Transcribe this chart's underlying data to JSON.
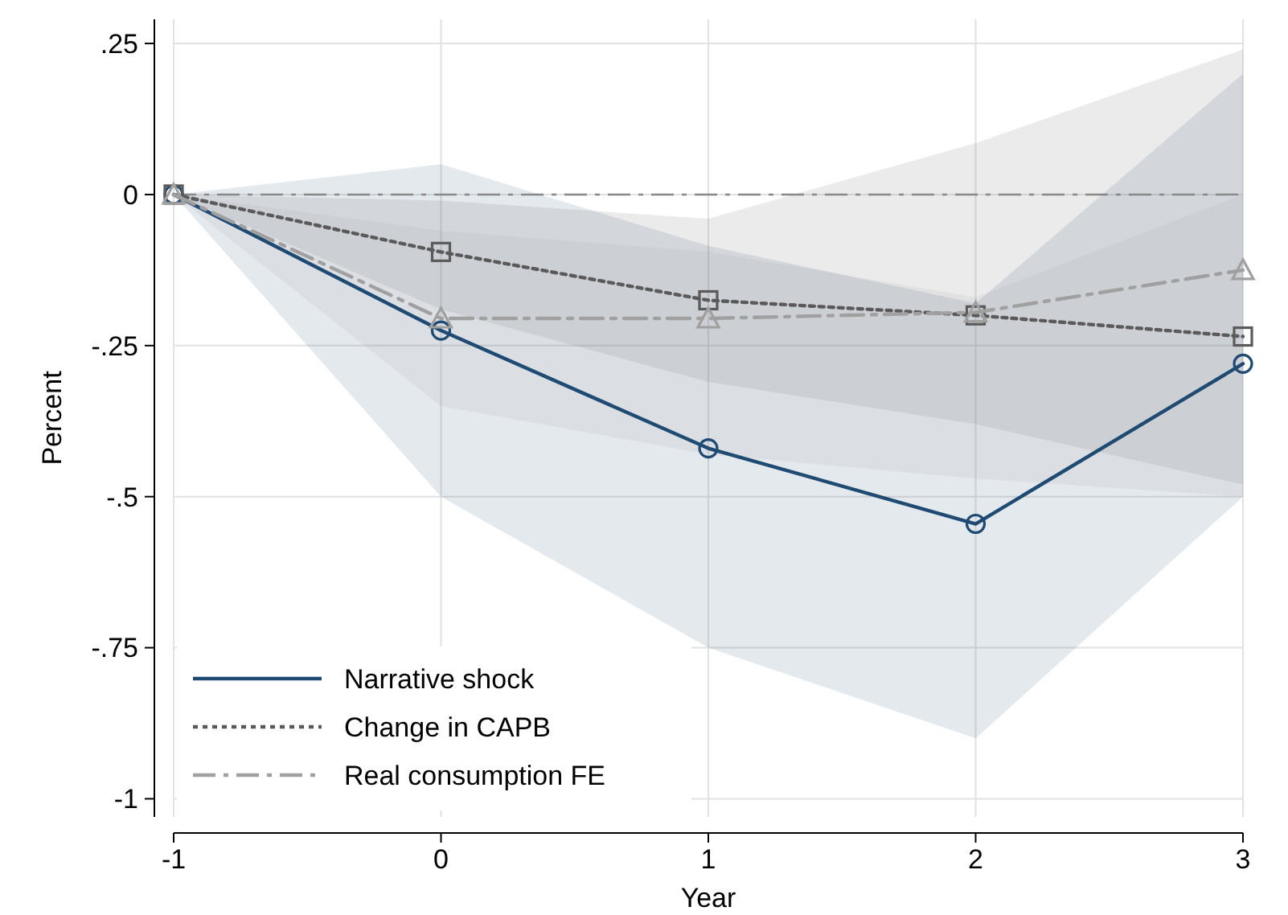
{
  "chart_data": {
    "type": "line",
    "xlabel": "Year",
    "ylabel": "Percent",
    "x": [
      -1,
      0,
      1,
      2,
      3
    ],
    "xlim": [
      -1,
      3
    ],
    "xticks": [
      -1,
      0,
      1,
      2,
      3
    ],
    "ylim": [
      -1.03,
      0.29
    ],
    "yticks": [
      {
        "value": 0.25,
        "label": ".25"
      },
      0,
      {
        "value": -0.25,
        "label": "-.25"
      },
      {
        "value": -0.5,
        "label": "-.5"
      },
      {
        "value": -0.75,
        "label": "-.75"
      },
      -1
    ],
    "grid": true,
    "legend": "bottom left",
    "ref_lines": [
      {
        "axis": "y",
        "value": 0,
        "color": "#888888",
        "line_style": "dashed"
      }
    ],
    "series": [
      {
        "name": "Narrative shock",
        "color": "#1f4a72",
        "marker": "circle",
        "line_style": "solid",
        "values": [
          0,
          -0.225,
          -0.42,
          -0.545,
          -0.28
        ],
        "lower": [
          0,
          -0.5,
          -0.75,
          -0.9,
          -0.5
        ],
        "upper": [
          0,
          0.05,
          -0.085,
          -0.18,
          0.2
        ]
      },
      {
        "name": "Change in CAPB",
        "color": "#5a5a5a",
        "marker": "square",
        "line_style": "dotted",
        "values": [
          0,
          -0.095,
          -0.175,
          -0.2,
          -0.235
        ],
        "lower": [
          0,
          -0.19,
          -0.31,
          -0.38,
          -0.48
        ],
        "upper": [
          0,
          -0.01,
          -0.04,
          0.085,
          0.24
        ]
      },
      {
        "name": "Real consumption FE",
        "color": "#a0a0a0",
        "marker": "triangle",
        "line_style": "dashed",
        "values": [
          0,
          -0.205,
          -0.205,
          -0.195,
          -0.125
        ],
        "lower": [
          0,
          -0.35,
          -0.43,
          -0.47,
          -0.5
        ],
        "upper": [
          0,
          -0.06,
          -0.095,
          -0.17,
          0
        ]
      }
    ]
  }
}
